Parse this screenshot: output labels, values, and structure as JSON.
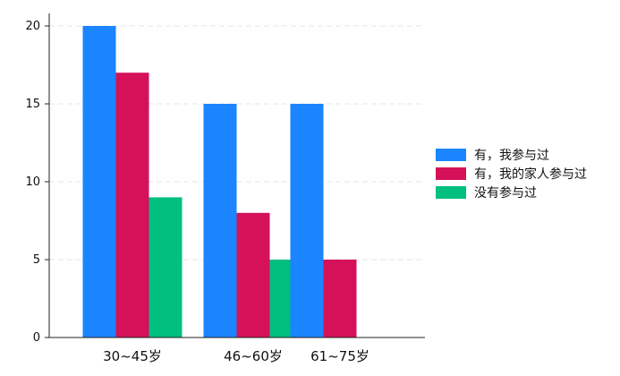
{
  "chart_data": {
    "type": "bar",
    "categories": [
      "30~45岁",
      "46~60岁",
      "61~75岁"
    ],
    "series": [
      {
        "name": "有，我参与过",
        "values": [
          20,
          15,
          15
        ],
        "color": "#1a85ff"
      },
      {
        "name": "有，我的家人参与过",
        "values": [
          17,
          8,
          5
        ],
        "color": "#d41159"
      },
      {
        "name": "没有参与过",
        "values": [
          9,
          5,
          0
        ],
        "color": "#00bf7f"
      }
    ],
    "ylim": [
      0,
      20
    ],
    "yticks": [
      0,
      5,
      10,
      15,
      20
    ],
    "grid": true,
    "legend_position": "right"
  }
}
